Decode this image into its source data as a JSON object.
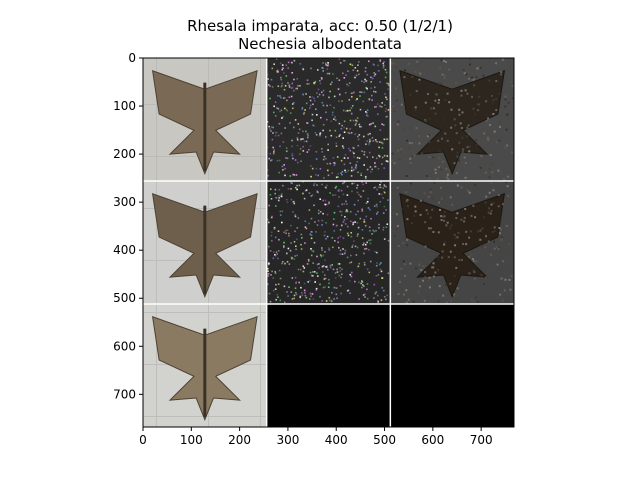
{
  "chart_data": {
    "type": "image-grid",
    "title": "Rhesala imparata, acc: 0.50 (1/2/1)",
    "subtitle": "Nechesia albodentata",
    "xlim": [
      0,
      768
    ],
    "ylim": [
      768,
      0
    ],
    "x_ticks": [
      0,
      100,
      200,
      300,
      400,
      500,
      600,
      700
    ],
    "y_ticks": [
      0,
      100,
      200,
      300,
      400,
      500,
      600,
      700
    ],
    "grid": {
      "rows": 3,
      "cols": 3,
      "cell_size": 256
    },
    "panels": [
      {
        "row": 0,
        "col": 0,
        "kind": "photo",
        "bg": "#c9c7c2",
        "wing": "#7a6a55"
      },
      {
        "row": 0,
        "col": 1,
        "kind": "saliency-noise",
        "bg": "#2a2a2a"
      },
      {
        "row": 0,
        "col": 2,
        "kind": "masked-photo",
        "bg": "#4a4a4a",
        "wing": "#2c261e"
      },
      {
        "row": 1,
        "col": 0,
        "kind": "photo",
        "bg": "#cfcfcd",
        "wing": "#6e5f4c"
      },
      {
        "row": 1,
        "col": 1,
        "kind": "saliency-noise",
        "bg": "#262626"
      },
      {
        "row": 1,
        "col": 2,
        "kind": "masked-photo",
        "bg": "#454545",
        "wing": "#2a2118"
      },
      {
        "row": 2,
        "col": 0,
        "kind": "photo",
        "bg": "#d2d2cf",
        "wing": "#8a7a62"
      },
      {
        "row": 2,
        "col": 1,
        "kind": "empty",
        "bg": "#000000"
      },
      {
        "row": 2,
        "col": 2,
        "kind": "empty",
        "bg": "#000000"
      }
    ]
  }
}
